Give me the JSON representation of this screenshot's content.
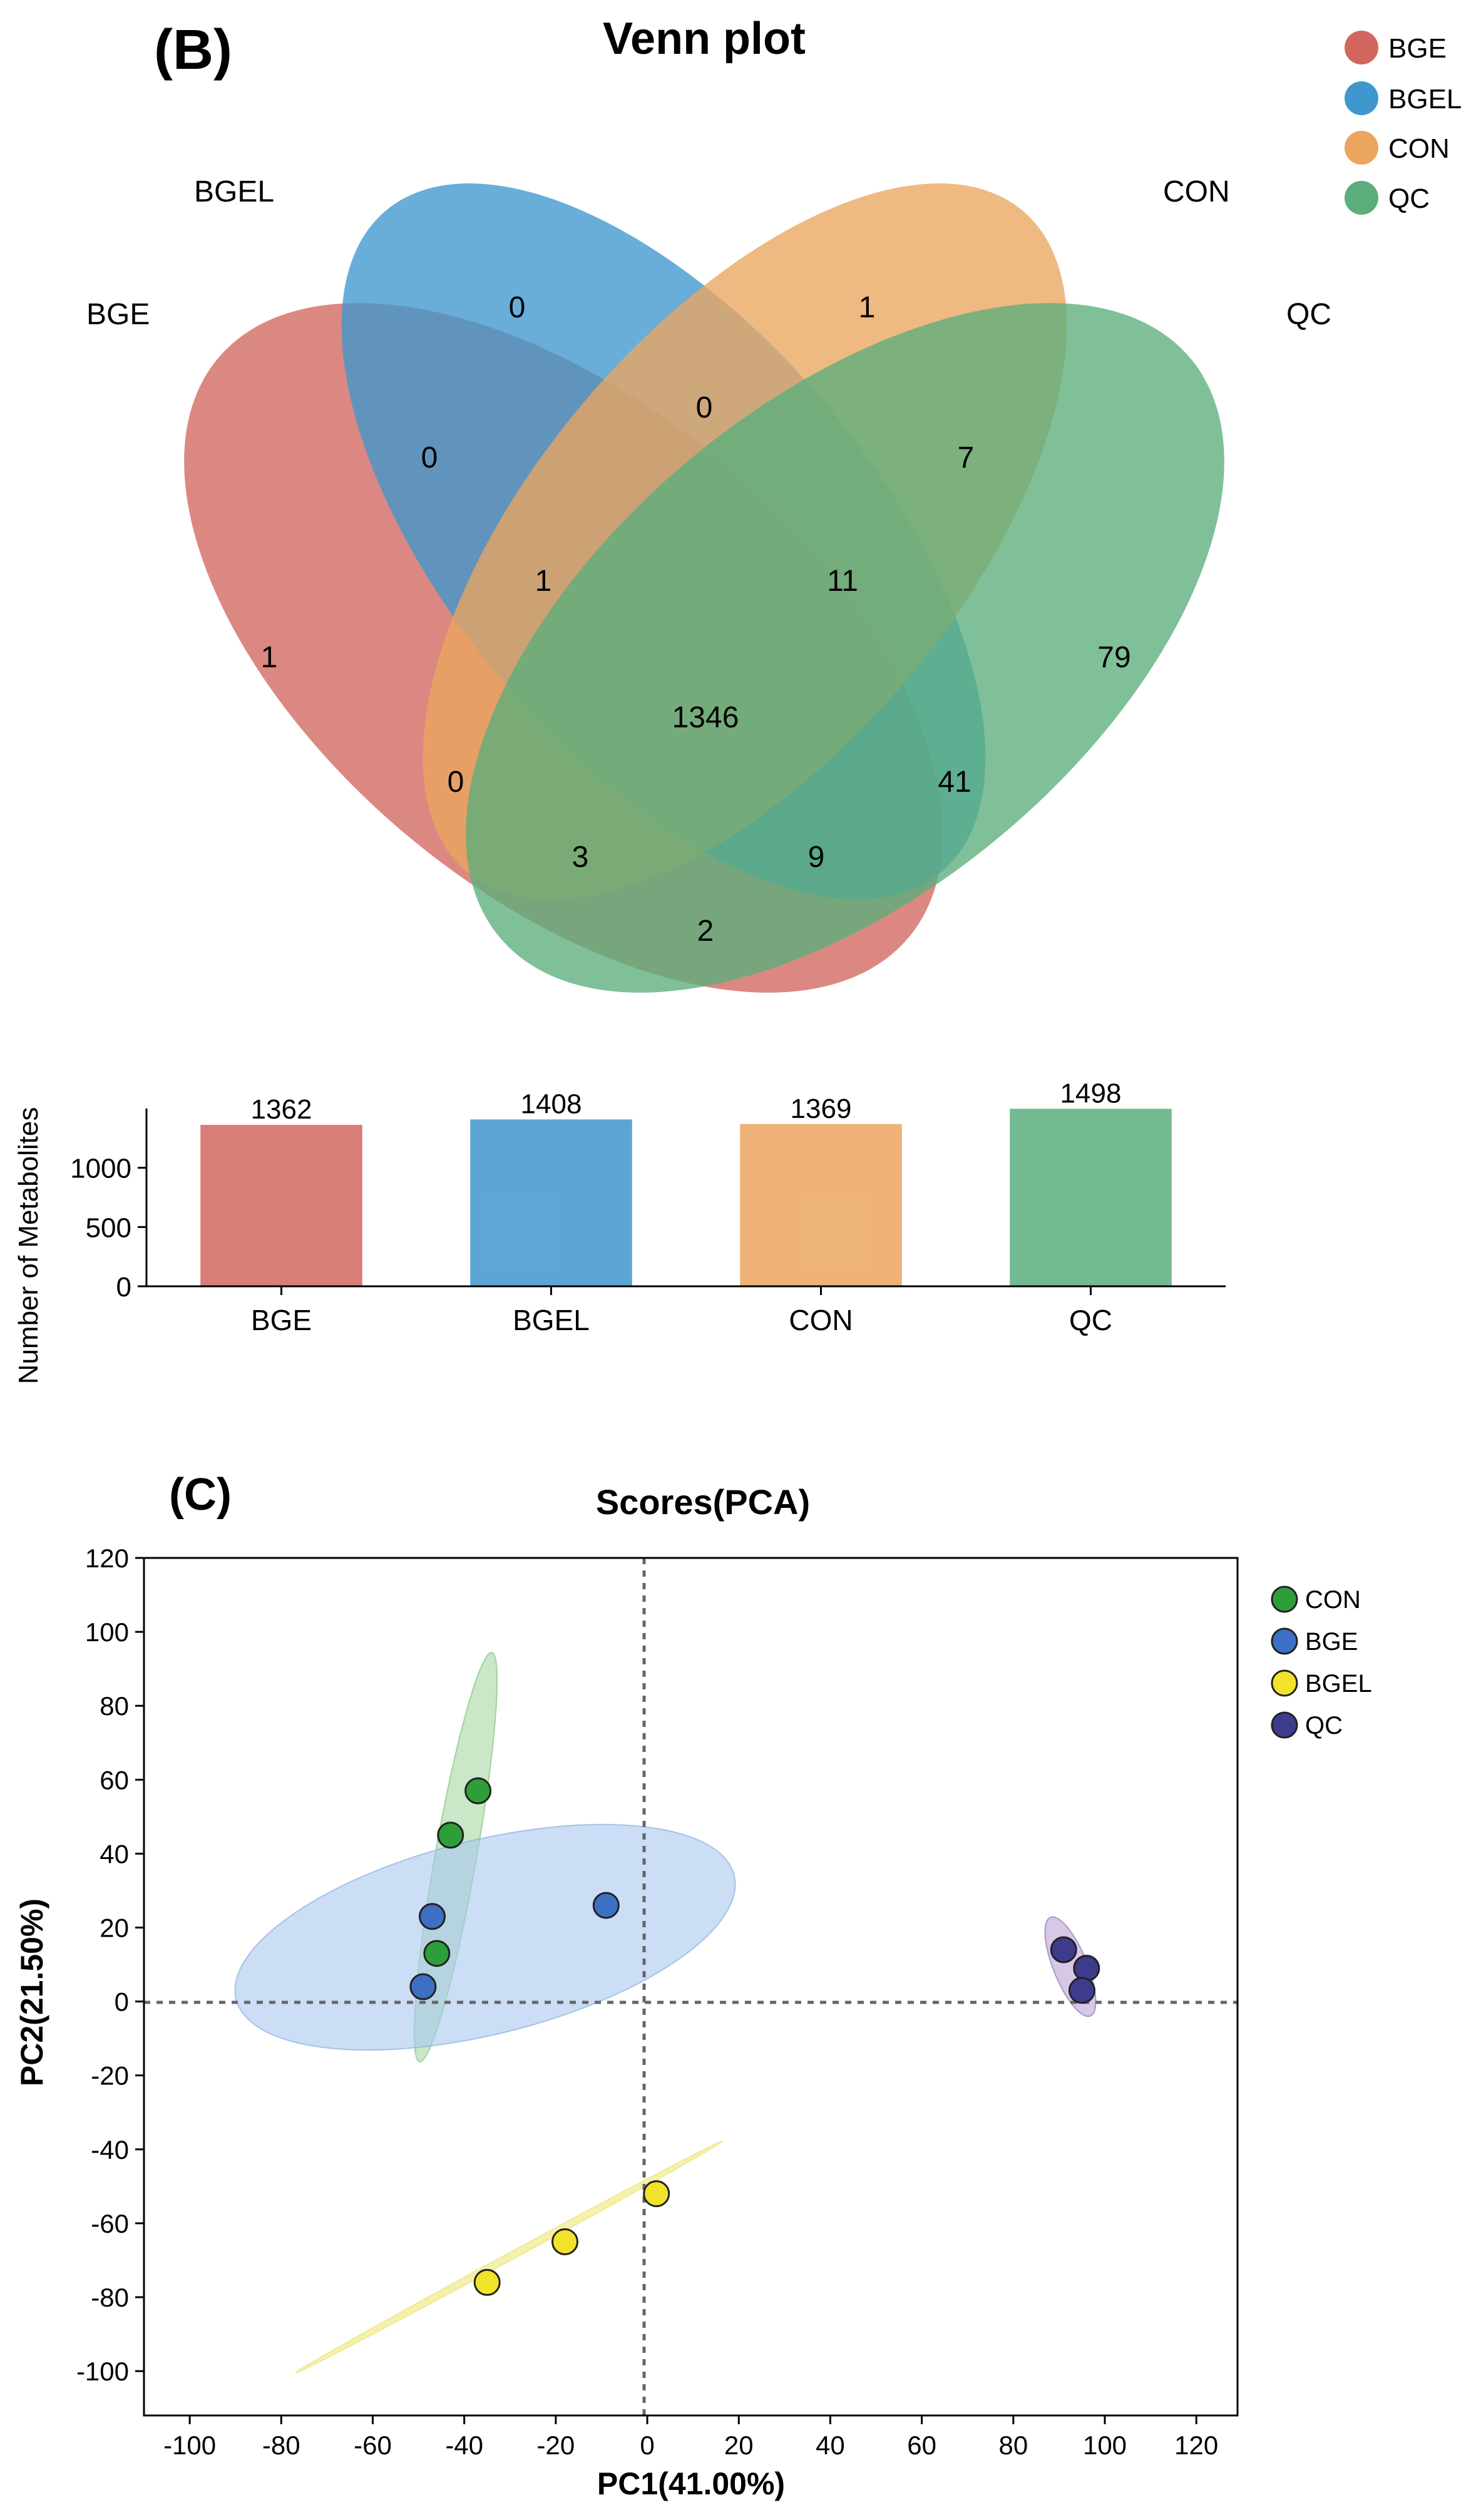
{
  "venn": {
    "panel_label": "(B)",
    "title": "Venn plot",
    "sets": [
      {
        "name": "BGE",
        "color": "#D2665F"
      },
      {
        "name": "BGEL",
        "color": "#3F97CE"
      },
      {
        "name": "CON",
        "color": "#EBA55F"
      },
      {
        "name": "QC",
        "color": "#5BAE7C"
      }
    ],
    "legend": [
      "BGE",
      "BGEL",
      "CON",
      "QC"
    ],
    "regions": [
      {
        "sets": "BGEL",
        "value": "0"
      },
      {
        "sets": "CON",
        "value": "1"
      },
      {
        "sets": "BGE",
        "value": "1"
      },
      {
        "sets": "QC",
        "value": "79"
      },
      {
        "sets": "BGE&BGEL",
        "value": "0"
      },
      {
        "sets": "BGEL&CON",
        "value": "0"
      },
      {
        "sets": "CON&QC",
        "value": "7"
      },
      {
        "sets": "BGE&BGEL&CON",
        "value": "1"
      },
      {
        "sets": "BGEL&CON&QC",
        "value": "11"
      },
      {
        "sets": "BGE&BGEL&CON&QC",
        "value": "1346"
      },
      {
        "sets": "BGE&CON",
        "value": "0"
      },
      {
        "sets": "BGEL&QC",
        "value": "41"
      },
      {
        "sets": "BGE&CON&QC",
        "value": "3"
      },
      {
        "sets": "BGE&BGEL&QC",
        "value": "9"
      },
      {
        "sets": "BGE&QC",
        "value": "2"
      }
    ]
  },
  "chart_data": [
    {
      "type": "bar",
      "title": "",
      "categories": [
        "BGE",
        "BGEL",
        "CON",
        "QC"
      ],
      "values": [
        1362,
        1408,
        1369,
        1498
      ],
      "value_labels": [
        "1362",
        "1408",
        "1369",
        "1498"
      ],
      "colors": [
        "#D2665F",
        "#3F97CE",
        "#EBA55F",
        "#5BAE7C"
      ],
      "xlabel": "",
      "ylabel": "Number of Metabolites",
      "ylim": [
        0,
        1500
      ],
      "yticks": [
        "0",
        "500",
        "1000"
      ]
    },
    {
      "type": "scatter",
      "panel_label": "(C)",
      "title": "Scores(PCA)",
      "xlabel": "PC1(41.00%)",
      "ylabel": "PC2(21.50%)",
      "xlim": [
        -110,
        129
      ],
      "ylim": [
        -112,
        120
      ],
      "xticks": [
        "-100",
        "-80",
        "-60",
        "-40",
        "-20",
        "0",
        "20",
        "40",
        "60",
        "80",
        "100",
        "120"
      ],
      "yticks": [
        "120",
        "100",
        "80",
        "60",
        "40",
        "20",
        "0",
        "-20",
        "-40",
        "-60",
        "-80",
        "-100"
      ],
      "series": [
        {
          "name": "CON",
          "color": "#2E9E3A",
          "points": [
            [
              -37,
              57
            ],
            [
              -43,
              45
            ],
            [
              -46,
              13
            ]
          ]
        },
        {
          "name": "BGE",
          "color": "#3D6FC4",
          "points": [
            [
              -47,
              23
            ],
            [
              -9,
              26
            ],
            [
              -49,
              4
            ]
          ]
        },
        {
          "name": "BGEL",
          "color": "#F2E22A",
          "points": [
            [
              2,
              -52
            ],
            [
              -18,
              -65
            ],
            [
              -35,
              -76
            ]
          ]
        },
        {
          "name": "QC",
          "color": "#3E3A8C",
          "points": [
            [
              91,
              14
            ],
            [
              96,
              9
            ],
            [
              95,
              3
            ]
          ]
        }
      ],
      "legend": [
        "CON",
        "BGE",
        "BGEL",
        "QC"
      ]
    }
  ]
}
